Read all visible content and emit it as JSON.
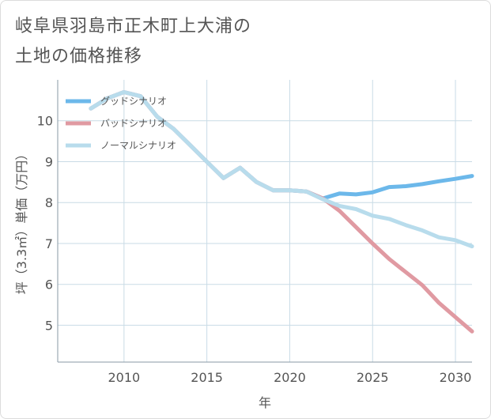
{
  "title": {
    "line1": "岐阜県羽島市正木町上大浦の",
    "line2": "土地の価格推移"
  },
  "chart_data": {
    "type": "line",
    "xlabel": "年",
    "ylabel": "坪（3.3㎡）単価（万円）",
    "xlim": [
      2006,
      2031
    ],
    "ylim": [
      4.1,
      11.0
    ],
    "xticks": [
      2010,
      2015,
      2020,
      2025,
      2030
    ],
    "yticks": [
      5,
      6,
      7,
      8,
      9,
      10
    ],
    "grid": true,
    "legend_position": "top-left",
    "series": [
      {
        "name": "グッドシナリオ",
        "color": "#6cb8ea",
        "x": [
          2008,
          2009,
          2010,
          2011,
          2012,
          2013,
          2014,
          2015,
          2016,
          2017,
          2018,
          2019,
          2020,
          2021,
          2022,
          2023,
          2024,
          2025,
          2026,
          2027,
          2028,
          2029,
          2030,
          2031
        ],
        "y": [
          10.3,
          10.55,
          10.7,
          10.6,
          10.1,
          9.8,
          9.4,
          9.0,
          8.6,
          8.85,
          8.5,
          8.3,
          8.3,
          8.27,
          8.1,
          8.22,
          8.2,
          8.25,
          8.38,
          8.4,
          8.45,
          8.52,
          8.58,
          8.65
        ]
      },
      {
        "name": "バッドシナリオ",
        "color": "#e09aa2",
        "x": [
          2008,
          2009,
          2010,
          2011,
          2012,
          2013,
          2014,
          2015,
          2016,
          2017,
          2018,
          2019,
          2020,
          2021,
          2022,
          2023,
          2024,
          2025,
          2026,
          2027,
          2028,
          2029,
          2030,
          2031
        ],
        "y": [
          10.3,
          10.55,
          10.7,
          10.6,
          10.1,
          9.8,
          9.4,
          9.0,
          8.6,
          8.85,
          8.5,
          8.3,
          8.3,
          8.27,
          8.1,
          7.8,
          7.4,
          7.0,
          6.62,
          6.3,
          5.98,
          5.55,
          5.2,
          4.85
        ]
      },
      {
        "name": "ノーマルシナリオ",
        "color": "#b8dcec",
        "x": [
          2008,
          2009,
          2010,
          2011,
          2012,
          2013,
          2014,
          2015,
          2016,
          2017,
          2018,
          2019,
          2020,
          2021,
          2022,
          2023,
          2024,
          2025,
          2026,
          2027,
          2028,
          2029,
          2030,
          2031
        ],
        "y": [
          10.3,
          10.55,
          10.7,
          10.6,
          10.1,
          9.8,
          9.4,
          9.0,
          8.6,
          8.85,
          8.5,
          8.3,
          8.3,
          8.27,
          8.08,
          7.92,
          7.84,
          7.68,
          7.6,
          7.45,
          7.32,
          7.15,
          7.08,
          6.93
        ]
      }
    ]
  }
}
